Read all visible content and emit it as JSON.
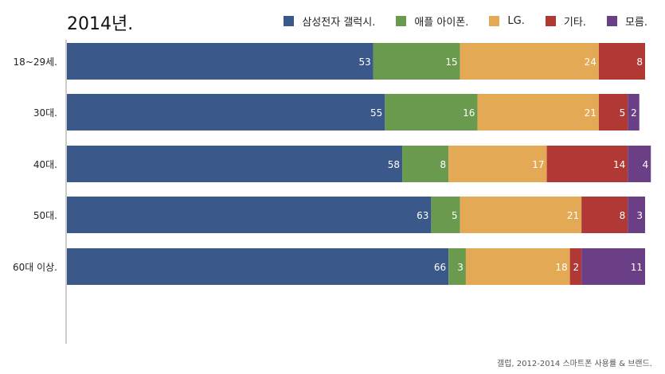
{
  "title": "2014년.",
  "source": "갤럽, 2012-2014 스마트폰 사용률 & 브랜드.",
  "chart_data": {
    "type": "bar",
    "orientation": "horizontal",
    "stacked": true,
    "categories": [
      "18~29세.",
      "30대.",
      "40대.",
      "50대.",
      "60대 이상."
    ],
    "series": [
      {
        "name": "삼성전자 갤럭시.",
        "color": "#3a5889",
        "values": [
          53,
          55,
          58,
          63,
          66
        ]
      },
      {
        "name": "애플 아이폰.",
        "color": "#6a9a4d",
        "values": [
          15,
          16,
          8,
          5,
          3
        ]
      },
      {
        "name": "LG.",
        "color": "#e4a955",
        "values": [
          24,
          21,
          17,
          21,
          18
        ]
      },
      {
        "name": "기타.",
        "color": "#b13935",
        "values": [
          8,
          5,
          14,
          8,
          2
        ]
      },
      {
        "name": "모름.",
        "color": "#6b3f86",
        "values": [
          0,
          2,
          4,
          3,
          11
        ]
      }
    ],
    "xlim": [
      0,
      100
    ],
    "legend": "top-right",
    "grid": false
  }
}
